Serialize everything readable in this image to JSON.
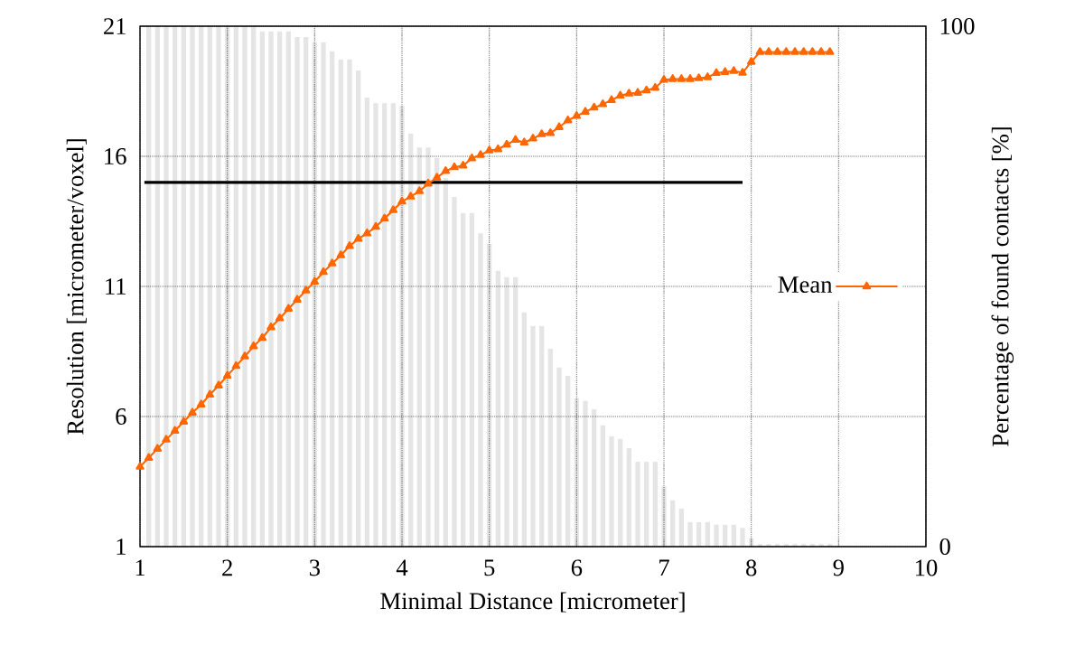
{
  "chart_data": {
    "type": "line",
    "xlabel": "Minimal Distance [micrometer]",
    "ylabel": "Resolution [micrometer/voxel]",
    "y2label": "Percentage of found contacts [%]",
    "xlim": [
      1,
      10
    ],
    "xticks": [
      1,
      2,
      3,
      4,
      5,
      6,
      7,
      8,
      9,
      10
    ],
    "ylim": [
      1,
      21
    ],
    "yticks": [
      1,
      6,
      11,
      16,
      21
    ],
    "y2lim": [
      0,
      100
    ],
    "y2ticks": [
      0,
      100
    ],
    "grid": true,
    "legend": "right",
    "series": [
      {
        "type": "bar",
        "axis": "y2",
        "color": "#e5e5e5",
        "x": [
          1.1,
          1.2,
          1.3,
          1.4,
          1.5,
          1.6,
          1.7,
          1.8,
          1.9,
          2.0,
          2.1,
          2.2,
          2.3,
          2.4,
          2.5,
          2.6,
          2.7,
          2.8,
          2.9,
          3.0,
          3.1,
          3.2,
          3.3,
          3.4,
          3.5,
          3.6,
          3.7,
          3.8,
          3.9,
          4.0,
          4.1,
          4.2,
          4.3,
          4.4,
          4.5,
          4.6,
          4.7,
          4.8,
          4.9,
          5.0,
          5.1,
          5.2,
          5.3,
          5.4,
          5.5,
          5.6,
          5.7,
          5.8,
          5.9,
          6.0,
          6.1,
          6.2,
          6.3,
          6.4,
          6.5,
          6.6,
          6.7,
          6.8,
          6.9,
          7.0,
          7.1,
          7.2,
          7.3,
          7.4,
          7.5,
          7.6,
          7.7,
          7.8,
          7.9,
          8.0,
          8.1,
          8.2,
          8.3,
          8.4,
          8.5,
          8.6,
          8.7,
          8.8,
          8.9
        ],
        "values": [
          100,
          100,
          100,
          100,
          100,
          100,
          100,
          100,
          100,
          100,
          100,
          100,
          100,
          99.0,
          99.0,
          99.0,
          99.0,
          97.9,
          97.9,
          96.9,
          96.9,
          95.2,
          93.6,
          93.6,
          91.5,
          86.3,
          85.2,
          85.2,
          85.2,
          84.7,
          79.4,
          76.7,
          76.7,
          74.7,
          70.8,
          67.2,
          64.1,
          64.1,
          60.2,
          58.2,
          53.0,
          51.8,
          51.8,
          45.0,
          42.4,
          42.4,
          38.0,
          34.4,
          32.8,
          28.5,
          28.0,
          26.4,
          23.3,
          21.2,
          20.7,
          18.9,
          16.3,
          16.3,
          16.3,
          11.6,
          8.9,
          7.3,
          4.7,
          4.7,
          4.7,
          4.2,
          4.2,
          4.2,
          3.6,
          1.6,
          0.5,
          0.5,
          0.5,
          0.5,
          0.5,
          0.5,
          0.5,
          0.5,
          0.5
        ]
      },
      {
        "color": "#000000",
        "marker": "none",
        "x": [
          1.05,
          7.9
        ],
        "values": [
          15,
          15
        ]
      },
      {
        "name": "Mean",
        "color": "#ff6600",
        "marker": "triangle",
        "line_style": "solid",
        "x": [
          1.0,
          1.1,
          1.2,
          1.3,
          1.4,
          1.5,
          1.6,
          1.7,
          1.8,
          1.9,
          2.0,
          2.1,
          2.2,
          2.3,
          2.4,
          2.5,
          2.6,
          2.7,
          2.8,
          2.9,
          3.0,
          3.1,
          3.2,
          3.3,
          3.4,
          3.5,
          3.6,
          3.7,
          3.8,
          3.9,
          4.0,
          4.1,
          4.2,
          4.3,
          4.4,
          4.5,
          4.6,
          4.7,
          4.8,
          4.9,
          5.0,
          5.1,
          5.2,
          5.3,
          5.4,
          5.5,
          5.6,
          5.7,
          5.8,
          5.9,
          6.0,
          6.1,
          6.2,
          6.3,
          6.4,
          6.5,
          6.6,
          6.7,
          6.8,
          6.9,
          7.0,
          7.1,
          7.2,
          7.3,
          7.4,
          7.5,
          7.6,
          7.7,
          7.8,
          7.9,
          8.0,
          8.1,
          8.2,
          8.3,
          8.4,
          8.5,
          8.6,
          8.7,
          8.8,
          8.9
        ],
        "values": [
          4.07,
          4.41,
          4.76,
          5.11,
          5.45,
          5.8,
          6.15,
          6.46,
          6.84,
          7.19,
          7.57,
          7.94,
          8.31,
          8.7,
          9.02,
          9.43,
          9.77,
          10.14,
          10.49,
          10.84,
          11.18,
          11.55,
          11.88,
          12.2,
          12.55,
          12.83,
          13.04,
          13.29,
          13.61,
          13.93,
          14.26,
          14.45,
          14.66,
          14.95,
          15.18,
          15.43,
          15.58,
          15.64,
          15.92,
          16.05,
          16.22,
          16.27,
          16.45,
          16.63,
          16.53,
          16.68,
          16.85,
          16.89,
          17.12,
          17.38,
          17.55,
          17.71,
          17.87,
          18.0,
          18.16,
          18.33,
          18.41,
          18.44,
          18.53,
          18.63,
          18.94,
          18.97,
          18.97,
          18.97,
          19.0,
          19.04,
          19.2,
          19.24,
          19.28,
          19.21,
          19.63,
          20.01,
          20.01,
          20.01,
          20.01,
          20.01,
          20.01,
          20.01,
          20.01,
          20.01
        ]
      }
    ]
  }
}
